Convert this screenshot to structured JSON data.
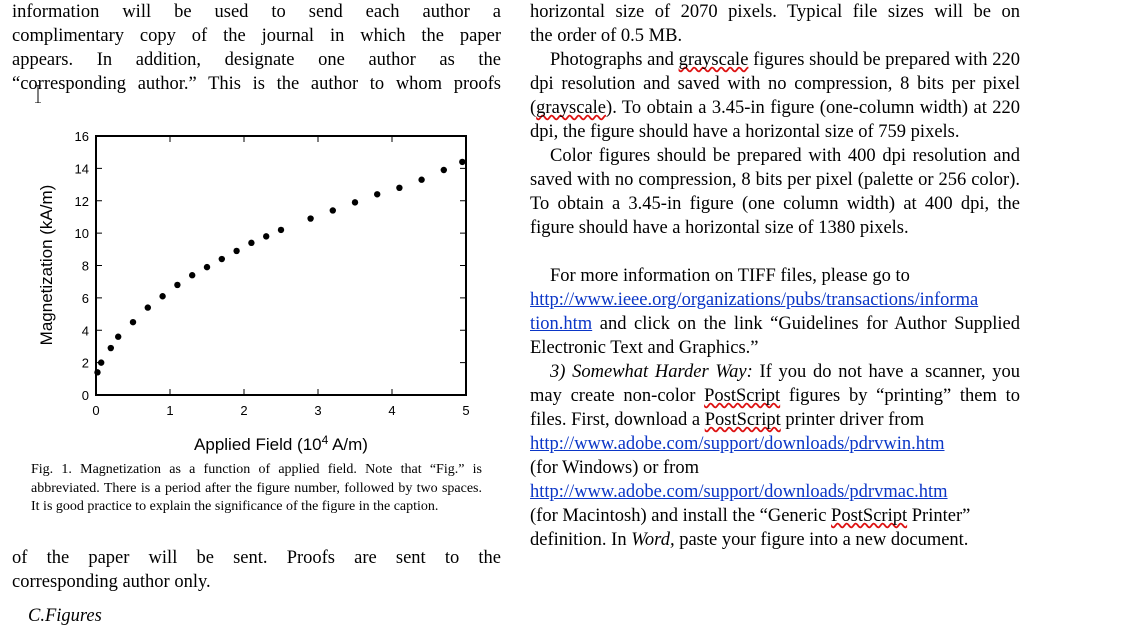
{
  "left_column": {
    "lines_top": [
      "information will be used to send each author a",
      "complimentary copy of the journal in which the paper",
      "appears. In addition, designate one author as the",
      "“corresponding author.” This is the author to whom proofs"
    ],
    "lines_after_figure": [
      "of the paper will be sent. Proofs are sent to the",
      "corresponding author only."
    ],
    "subheading": "C.Figures"
  },
  "caption": "Fig. 1.  Magnetization as a function of applied field. Note that “Fig.” is abbreviated. There is a period after the figure number, followed by two spaces. It is good practice to explain the significance of the figure in the caption.",
  "chart_data": {
    "type": "scatter",
    "title": "",
    "xlabel": "Applied Field (10⁴ A/m)",
    "ylabel": "Magnetization (kA/m)",
    "xlim": [
      0,
      5
    ],
    "ylim": [
      0,
      16
    ],
    "xticks": [
      0,
      1,
      2,
      3,
      4,
      5
    ],
    "yticks": [
      0,
      2,
      4,
      6,
      8,
      10,
      12,
      14,
      16
    ],
    "grid": false,
    "series": [
      {
        "x": [
          0.02,
          0.07,
          0.2,
          0.3,
          0.5,
          0.7,
          0.9,
          1.1,
          1.3,
          1.5,
          1.7,
          1.9,
          2.1,
          2.3,
          2.5,
          2.9,
          3.2,
          3.5,
          3.8,
          4.1,
          4.4,
          4.7,
          4.95
        ],
        "y": [
          1.4,
          2.0,
          2.9,
          3.6,
          4.5,
          5.4,
          6.1,
          6.8,
          7.4,
          7.9,
          8.4,
          8.9,
          9.4,
          9.8,
          10.2,
          10.9,
          11.4,
          11.9,
          12.4,
          12.8,
          13.3,
          13.9,
          14.4
        ]
      }
    ]
  },
  "right_column": {
    "line_1": "horizontal size of 2070 pixels. Typical file sizes will be on",
    "line_2": "the order of 0.5 MB.",
    "para_grayscale": {
      "p1": "Photographs and ",
      "w1": "grayscale",
      "p2": " figures should be prepared with 220 dpi resolution and saved with no compression, 8 bits per pixel (",
      "w2": "grayscale",
      "p3": "). To obtain a 3.45-in figure (one-column width) at 220 dpi, the figure should have a horizontal size of 759 pixels."
    },
    "para_color": "Color figures should be prepared with 400 dpi resolution and saved with no compression, 8 bits per pixel (palette or 256 color). To obtain a 3.45-in figure (one column width) at 400 dpi, the figure should have a horizontal size of 1380 pixels.",
    "para_tiff": {
      "p1": "For more information on TIFF files, please go to",
      "link_a": "http://www.ieee.org/organizations/pubs/transactions/informa",
      "link_b": "tion.htm",
      "p2": " and click on the link “Guidelines for Author Supplied Electronic Text and Graphics.”"
    },
    "para_postscript": {
      "lead": "3) Somewhat Harder Way:",
      "p1": " If you do not have a scanner, you may create non-color ",
      "w1": "PostScript",
      "p2": " figures by “printing” them to files. First, download a ",
      "w2": "PostScript",
      "p3": " printer driver from",
      "link_win": "http://www.adobe.com/support/downloads/pdrvwin.htm",
      "p4": "(for Windows) or from",
      "link_mac": "http://www.adobe.com/support/downloads/pdrvmac.htm",
      "p5": "(for Macintosh) and install the “Generic ",
      "w3": "PostScript",
      "p6": " Printer”",
      "p7_italic_prefix": "definition. In ",
      "p7_word": "Word,",
      "p7_rest": " paste your figure into a new document."
    }
  }
}
